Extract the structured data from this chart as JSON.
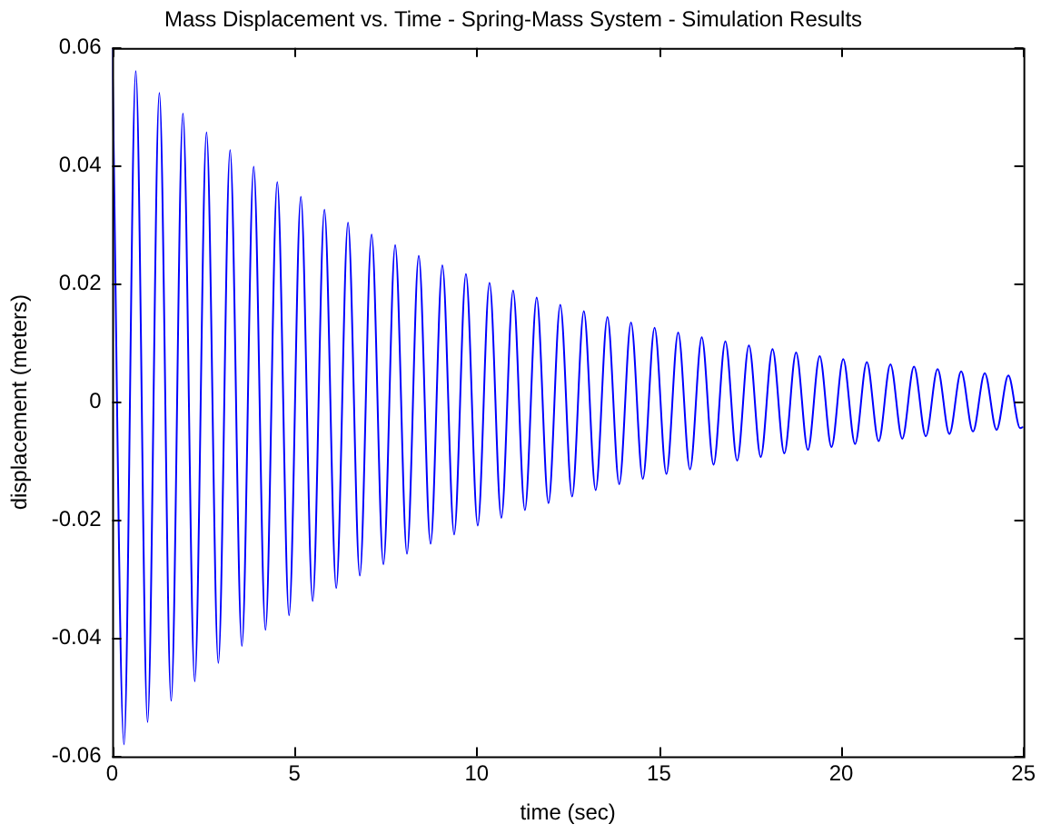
{
  "chart_data": {
    "type": "line",
    "title": "Mass Displacement vs. Time - Spring-Mass System - Simulation Results",
    "xlabel": "time (sec)",
    "ylabel": "displacement (meters)",
    "xlim": [
      0,
      25
    ],
    "xticks": [
      0,
      5,
      10,
      15,
      20,
      25
    ],
    "ylim": [
      -0.06,
      0.06
    ],
    "yticks": [
      -0.06,
      -0.04,
      -0.02,
      0,
      0.02,
      0.04,
      0.06
    ],
    "grid": false,
    "legend": false,
    "marker": "none",
    "line_style": "solid",
    "x": [
      0,
      0.324,
      0.647,
      0.971,
      1.294,
      1.618,
      1.941,
      2.265,
      2.588,
      2.912,
      3.235,
      3.559,
      3.882,
      4.206,
      4.529,
      4.853,
      5.176,
      5.5,
      5.823,
      6.147,
      6.47,
      6.794,
      7.117,
      7.441,
      7.764,
      8.088,
      8.411,
      8.735,
      9.058,
      9.382,
      9.705,
      10.029,
      10.352,
      10.676,
      10.999,
      11.323,
      11.646,
      11.97,
      12.293,
      12.617,
      12.94,
      13.264,
      13.587,
      13.911,
      14.234,
      14.558,
      14.881,
      15.205,
      15.528,
      15.852,
      16.175,
      16.499,
      16.822,
      17.146,
      17.469,
      17.793,
      18.116,
      18.44,
      18.763,
      19.087,
      19.41,
      19.734,
      20.057,
      20.381,
      20.704,
      21.028,
      21.351,
      21.675,
      21.998,
      22.322,
      22.645,
      22.969,
      23.292,
      23.616,
      23.939,
      24.263,
      24.586,
      24.91,
      25
    ],
    "series": [
      {
        "color": "#0000ff",
        "values": [
          0.06,
          -0.058,
          0.0561,
          -0.0542,
          0.0524,
          -0.0506,
          0.0489,
          -0.0473,
          0.0457,
          -0.0442,
          0.0427,
          -0.0413,
          0.0399,
          -0.0386,
          0.0373,
          -0.0361,
          0.0348,
          -0.0337,
          0.0326,
          -0.0315,
          0.0304,
          -0.0294,
          0.0284,
          -0.0275,
          0.0266,
          -0.0257,
          0.0248,
          -0.024,
          0.0232,
          -0.0224,
          0.0217,
          -0.0209,
          0.0202,
          -0.0196,
          0.0189,
          -0.0183,
          0.0177,
          -0.0171,
          0.0165,
          -0.016,
          0.0154,
          -0.0149,
          0.0144,
          -0.0139,
          0.0135,
          -0.013,
          0.0126,
          -0.0122,
          0.0118,
          -0.0114,
          0.011,
          -0.0106,
          0.0103,
          -0.0099,
          0.0096,
          -0.0093,
          0.009,
          -0.0087,
          0.0084,
          -0.0081,
          0.0078,
          -0.0076,
          0.0073,
          -0.0071,
          0.0068,
          -0.0066,
          0.0064,
          -0.0062,
          0.006,
          -0.0058,
          0.0056,
          -0.0054,
          0.0052,
          -0.005,
          0.0049,
          -0.0047,
          0.0045,
          -0.0044,
          -0.0042
        ]
      }
    ]
  }
}
